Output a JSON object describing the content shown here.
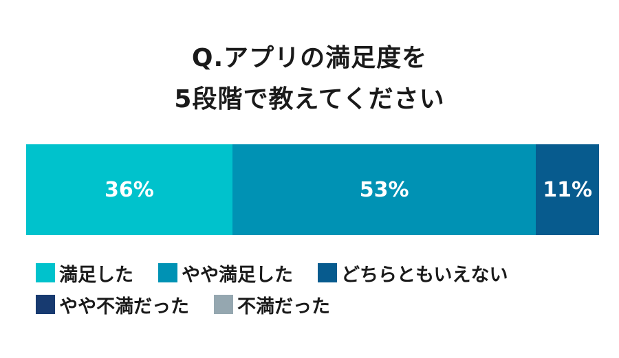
{
  "title": {
    "line1": "Q.アプリの満足度を",
    "line2": "5段階で教えてください"
  },
  "chart_data": {
    "type": "bar",
    "orientation": "horizontal-stacked",
    "categories": [
      "満足した",
      "やや満足した",
      "どちらともいえない",
      "やや不満だった",
      "不満だった"
    ],
    "values": [
      36,
      53,
      11,
      0,
      0
    ],
    "value_labels": [
      "36%",
      "53%",
      "11%",
      "",
      ""
    ],
    "colors": [
      "#00c2cc",
      "#0092b4",
      "#075b8e",
      "#173a70",
      "#95a7b0"
    ],
    "unit": "%",
    "xlim": [
      0,
      100
    ],
    "grid": false,
    "legend": "bottom"
  }
}
